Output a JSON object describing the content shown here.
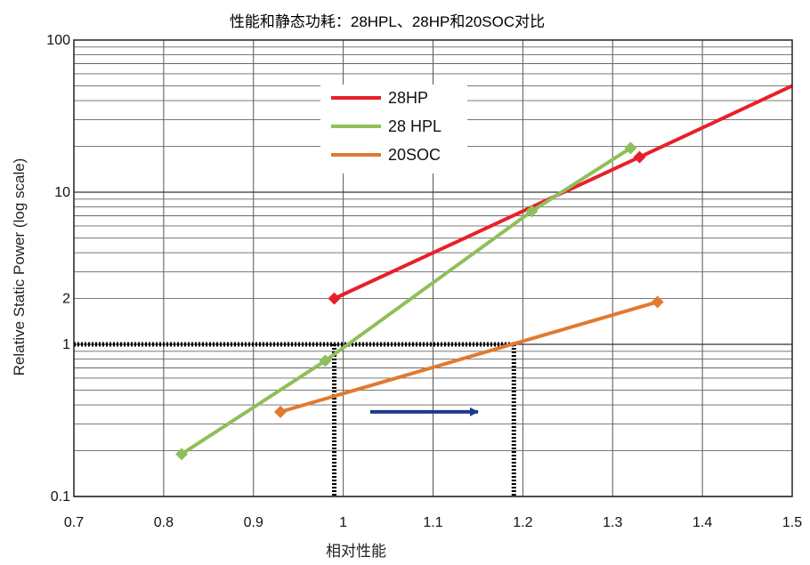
{
  "chart_data": {
    "type": "line",
    "title": "性能和静态功耗：28HPL、28HP和20SOC对比",
    "xlabel": "相对性能",
    "ylabel": "Relative Static Power (log scale)",
    "xlim": [
      0.7,
      1.5
    ],
    "ylim": [
      0.1,
      100
    ],
    "yscale": "log",
    "grid": true,
    "legend_position": "top-center",
    "x_ticks": [
      "0.7",
      "0.8",
      "0.9",
      "1",
      "1.1",
      "1.2",
      "1.3",
      "1.4",
      "1.5"
    ],
    "y_ticks": [
      "0.1",
      "1",
      "2",
      "10",
      "100"
    ],
    "series": [
      {
        "name": "28HP",
        "color": "#e8202a",
        "marker": "diamond",
        "x": [
          0.99,
          1.33,
          1.5
        ],
        "y": [
          2,
          17,
          50
        ],
        "markers": [
          true,
          true,
          false
        ]
      },
      {
        "name": "28 HPL",
        "color": "#8fbf5a",
        "marker": "diamond",
        "x": [
          0.82,
          0.98,
          1.21,
          1.32
        ],
        "y": [
          0.19,
          0.78,
          7.5,
          19.5
        ],
        "markers": [
          true,
          true,
          true,
          true
        ]
      },
      {
        "name": "20SOC",
        "color": "#e07a2e",
        "marker": "diamond",
        "x": [
          0.93,
          1.35
        ],
        "y": [
          0.36,
          1.9
        ],
        "markers": [
          true,
          true
        ]
      }
    ],
    "annotations": [
      {
        "type": "dotted-reference",
        "color": "#000000",
        "horizontal_y": 1,
        "vertical_x": [
          0.99,
          1.19
        ]
      },
      {
        "type": "arrow",
        "color": "#1f3a8a",
        "from": [
          1.03,
          0.36
        ],
        "to": [
          1.15,
          0.36
        ]
      }
    ]
  }
}
